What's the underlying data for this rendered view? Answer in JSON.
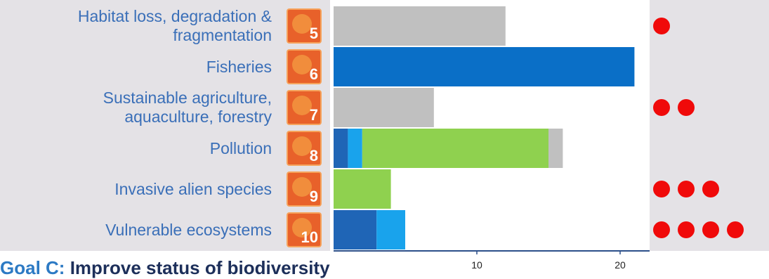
{
  "colors": {
    "grey": "#c0c0c0",
    "dark_blue": "#1f65b6",
    "blue": "#0a6fc7",
    "light_blue": "#19a3ec",
    "green": "#8fd14f",
    "dot_red": "#f00a0a",
    "label_blue": "#3a6fb8"
  },
  "footer": {
    "goal": "Goal C:",
    "rest": "Improve status of biodiversity"
  },
  "rows": [
    {
      "label_lines": [
        "Habitat loss, degradation &",
        "fragmentation"
      ],
      "target": "5",
      "icon": "habitat-icon",
      "dots": 1
    },
    {
      "label_lines": [
        "Fisheries"
      ],
      "target": "6",
      "icon": "fish-icon",
      "dots": 0
    },
    {
      "label_lines": [
        "Sustainable agriculture,",
        "aquaculture, forestry"
      ],
      "target": "7",
      "icon": "agriculture-icon",
      "dots": 2
    },
    {
      "label_lines": [
        "Pollution"
      ],
      "target": "8",
      "icon": "pollution-icon",
      "dots": 0
    },
    {
      "label_lines": [
        "Invasive alien species"
      ],
      "target": "9",
      "icon": "invasive-species-icon",
      "dots": 3
    },
    {
      "label_lines": [
        "Vulnerable ecosystems"
      ],
      "target": "10",
      "icon": "ecosystem-icon",
      "dots": 4
    }
  ],
  "chart_data": {
    "type": "bar",
    "orientation": "horizontal",
    "stacked": true,
    "categories": [
      "Habitat loss, degradation & fragmentation",
      "Fisheries",
      "Sustainable agriculture, aquaculture, forestry",
      "Pollution",
      "Invasive alien species",
      "Vulnerable ecosystems"
    ],
    "series": [
      {
        "color": "#1f65b6",
        "values": [
          0,
          0,
          0,
          1,
          0,
          3
        ]
      },
      {
        "color": "#0a6fc7",
        "values": [
          0,
          21,
          0,
          0,
          0,
          0
        ]
      },
      {
        "color": "#19a3ec",
        "values": [
          0,
          0,
          0,
          1,
          0,
          2
        ]
      },
      {
        "color": "#8fd14f",
        "values": [
          0,
          0,
          0,
          13,
          4,
          0
        ]
      },
      {
        "color": "#c0c0c0",
        "values": [
          12,
          0,
          7,
          1,
          0,
          0
        ]
      }
    ],
    "xticks": [
      10,
      20
    ],
    "xlim": [
      0,
      22
    ],
    "title": "",
    "xlabel": "",
    "ylabel": ""
  }
}
